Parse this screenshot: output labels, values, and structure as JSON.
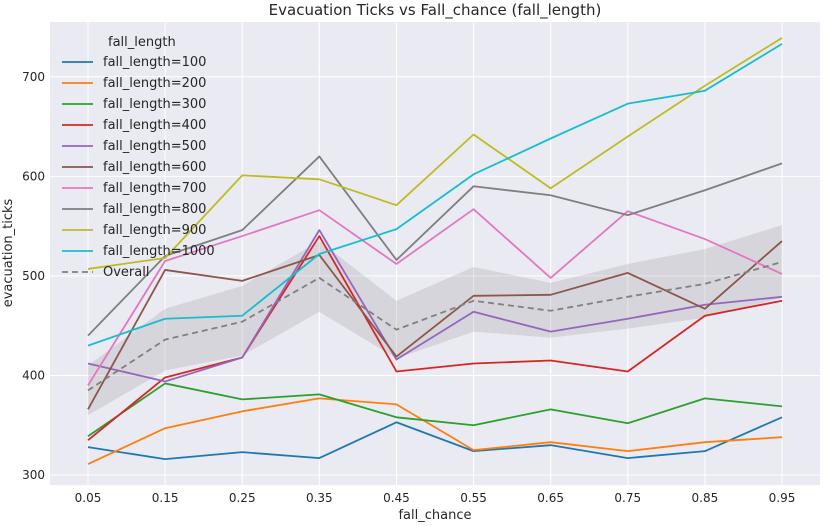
{
  "chart_data": {
    "type": "line",
    "title": "Evacuation Ticks vs Fall_chance (fall_length)",
    "xlabel": "fall_chance",
    "ylabel": "evacuation_ticks",
    "x": [
      0.05,
      0.15,
      0.25,
      0.35,
      0.45,
      0.55,
      0.65,
      0.75,
      0.85,
      0.95
    ],
    "x_tick_labels": [
      "0.05",
      "0.15",
      "0.25",
      "0.35",
      "0.45",
      "0.55",
      "0.65",
      "0.75",
      "0.85",
      "0.95"
    ],
    "ylim": [
      290,
      755
    ],
    "y_ticks": [
      300,
      400,
      500,
      600,
      700
    ],
    "y_tick_labels": [
      "300",
      "400",
      "500",
      "600",
      "700"
    ],
    "grid": true,
    "legend_title": "fall_length",
    "legend_position": "top-left",
    "series": [
      {
        "name": "fall_length=100",
        "color": "#1f77b4",
        "values": [
          328,
          316,
          323,
          317,
          353,
          324,
          330,
          317,
          324,
          358
        ]
      },
      {
        "name": "fall_length=200",
        "color": "#ff7f0e",
        "values": [
          311,
          347,
          364,
          377,
          371,
          325,
          333,
          324,
          333,
          338
        ]
      },
      {
        "name": "fall_length=300",
        "color": "#2ca02c",
        "values": [
          339,
          392,
          376,
          381,
          358,
          350,
          366,
          352,
          377,
          369
        ]
      },
      {
        "name": "fall_length=400",
        "color": "#d62728",
        "values": [
          335,
          398,
          418,
          540,
          404,
          412,
          415,
          404,
          460,
          475
        ]
      },
      {
        "name": "fall_length=500",
        "color": "#9467bd",
        "values": [
          412,
          394,
          418,
          546,
          416,
          464,
          444,
          457,
          471,
          479
        ]
      },
      {
        "name": "fall_length=600",
        "color": "#8c564b",
        "values": [
          366,
          506,
          495,
          521,
          419,
          480,
          481,
          503,
          467,
          535
        ]
      },
      {
        "name": "fall_length=700",
        "color": "#e377c2",
        "values": [
          390,
          515,
          540,
          566,
          512,
          567,
          498,
          565,
          537,
          502
        ]
      },
      {
        "name": "fall_length=800",
        "color": "#7f7f7f",
        "values": [
          440,
          520,
          546,
          620,
          516,
          590,
          581,
          561,
          586,
          613
        ]
      },
      {
        "name": "fall_length=900",
        "color": "#bcbd22",
        "values": [
          507,
          518,
          601,
          597,
          571,
          642,
          588,
          640,
          691,
          739
        ]
      },
      {
        "name": "fall_length=1000",
        "color": "#17becf",
        "values": [
          430,
          457,
          460,
          522,
          547,
          602,
          638,
          673,
          686,
          733
        ]
      },
      {
        "name": "Overall",
        "color": "#808080",
        "dashed": true,
        "values": [
          385,
          436,
          454,
          498,
          446,
          475,
          465,
          479,
          492,
          514
        ]
      }
    ],
    "overall_band": {
      "upper": [
        410,
        467,
        490,
        535,
        475,
        509,
        493,
        512,
        527,
        551
      ],
      "lower": [
        360,
        405,
        420,
        464,
        417,
        444,
        438,
        447,
        458,
        478
      ]
    },
    "colors": {
      "plot_background": "#eaeaf2",
      "grid": "#ffffff",
      "band": "#808080"
    }
  }
}
